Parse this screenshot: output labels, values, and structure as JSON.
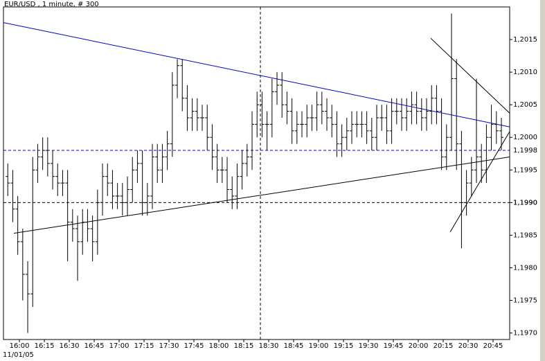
{
  "chart_data": {
    "type": "ohlc",
    "title": "EUR/USD , 1 minute, # 300",
    "date_label": "11/01/05",
    "x": [
      953,
      956,
      959,
      962,
      965,
      968,
      971,
      974,
      977,
      980,
      983,
      986,
      989,
      992,
      995,
      998,
      1001,
      1004,
      1007,
      1010,
      1013,
      1016,
      1019,
      1022,
      1025,
      1028,
      1031,
      1034,
      1037,
      1040,
      1043,
      1046,
      1049,
      1052,
      1055,
      1058,
      1061,
      1064,
      1067,
      1070,
      1073,
      1076,
      1079,
      1082,
      1085,
      1088,
      1091,
      1094,
      1097,
      1100,
      1103,
      1106,
      1109,
      1112,
      1115,
      1118,
      1121,
      1124,
      1127,
      1130,
      1133,
      1136,
      1139,
      1142,
      1145,
      1148,
      1151,
      1154,
      1157,
      1160,
      1163,
      1166,
      1169,
      1172,
      1175,
      1178,
      1181,
      1184,
      1187,
      1190,
      1193,
      1196,
      1199,
      1202,
      1205,
      1208,
      1211,
      1214,
      1217,
      1220,
      1223,
      1226,
      1229,
      1232,
      1235,
      1238,
      1241,
      1244,
      1247,
      1250
    ],
    "open": [
      1.1994,
      1.1993,
      1.1989,
      1.1984,
      1.1979,
      1.1976,
      1.1995,
      1.1997,
      1.1998,
      1.1996,
      1.1994,
      1.1993,
      1.1993,
      1.1987,
      1.1986,
      1.1984,
      1.1987,
      1.1986,
      1.1984,
      1.199,
      1.1994,
      1.1993,
      1.1991,
      1.1991,
      1.199,
      1.1992,
      1.1995,
      1.1996,
      1.199,
      1.1991,
      1.1997,
      1.1995,
      1.1997,
      1.1999,
      1.2008,
      1.2011,
      1.2006,
      1.2003,
      1.2004,
      1.2003,
      1.2003,
      1.2,
      1.1997,
      1.1995,
      1.1995,
      1.1992,
      1.1991,
      1.1994,
      1.1996,
      1.1997,
      1.2002,
      1.2005,
      1.2002,
      1.2002,
      1.2007,
      1.2008,
      1.2005,
      1.2004,
      1.2001,
      1.2002,
      1.2002,
      1.2003,
      1.2003,
      1.2005,
      1.2004,
      1.2003,
      1.2002,
      1.1999,
      1.2,
      1.2001,
      1.2002,
      1.2002,
      1.2002,
      1.2001,
      1.2,
      1.2003,
      1.2003,
      1.2001,
      1.2004,
      1.2004,
      1.2003,
      1.2004,
      1.2005,
      1.2004,
      1.2003,
      1.2004,
      1.2006,
      1.2004,
      1.1997,
      1.2,
      1.2009,
      1.1999,
      1.199,
      1.1993,
      1.1995,
      1.1997,
      1.1995,
      1.2,
      1.2002,
      1.2001
    ],
    "high": [
      1.1996,
      1.1995,
      1.1991,
      1.1986,
      1.1981,
      1.1997,
      1.1999,
      1.2,
      1.2,
      1.1998,
      1.1996,
      1.1995,
      1.1995,
      1.1989,
      1.1988,
      1.1989,
      1.1989,
      1.1988,
      1.1992,
      1.1996,
      1.1996,
      1.1995,
      1.1993,
      1.1993,
      1.1994,
      1.1997,
      1.1998,
      1.1998,
      1.1993,
      1.1999,
      1.1999,
      1.1999,
      1.2001,
      1.201,
      1.2012,
      1.2012,
      1.2008,
      1.2006,
      1.2006,
      1.2005,
      1.2005,
      1.2002,
      1.1999,
      1.1997,
      1.1997,
      1.1994,
      1.1996,
      1.1998,
      1.1999,
      1.2004,
      1.2007,
      1.2007,
      1.2004,
      1.2009,
      1.201,
      1.201,
      1.2007,
      1.2006,
      1.2004,
      1.2004,
      1.2005,
      1.2005,
      1.2007,
      1.2007,
      1.2006,
      1.2005,
      1.2004,
      1.2002,
      1.2003,
      1.2004,
      1.2004,
      1.2004,
      1.2004,
      1.2003,
      1.2005,
      1.2005,
      1.2005,
      1.2006,
      1.2006,
      1.2006,
      1.2006,
      1.2007,
      1.2007,
      1.2006,
      1.2006,
      1.2008,
      1.2008,
      1.2006,
      1.2002,
      1.2019,
      1.2012,
      1.2001,
      1.1995,
      1.1997,
      1.2009,
      1.1999,
      1.2002,
      1.2005,
      1.2004,
      1.2003
    ],
    "low": [
      1.1991,
      1.1987,
      1.1982,
      1.1975,
      1.197,
      1.1974,
      1.1993,
      1.1995,
      1.1994,
      1.1992,
      1.1991,
      1.1991,
      1.1981,
      1.1984,
      1.1978,
      1.1982,
      1.1984,
      1.1981,
      1.1982,
      1.1988,
      1.1991,
      1.1989,
      1.1989,
      1.1988,
      1.1988,
      1.199,
      1.1993,
      1.1988,
      1.1988,
      1.1989,
      1.1993,
      1.1993,
      1.1995,
      1.1997,
      1.2006,
      1.2004,
      1.2001,
      1.2001,
      1.2001,
      1.2001,
      1.1998,
      1.1995,
      1.1993,
      1.1993,
      1.199,
      1.1989,
      1.1989,
      1.1992,
      1.1994,
      1.1995,
      1.2,
      1.2,
      1.1998,
      1.2,
      1.2005,
      1.2003,
      1.2002,
      1.1999,
      1.1999,
      1.2,
      1.2,
      1.2001,
      1.2001,
      1.2002,
      1.2001,
      1.2,
      1.1997,
      1.1997,
      1.1998,
      1.1999,
      1.2,
      1.2,
      1.1999,
      1.1998,
      1.1998,
      1.2001,
      1.1999,
      1.1999,
      1.2002,
      1.2001,
      1.2001,
      1.2002,
      1.2002,
      1.2001,
      1.2001,
      1.2002,
      1.2002,
      1.1995,
      1.1995,
      1.1998,
      1.1995,
      1.1983,
      1.1988,
      1.1991,
      1.1993,
      1.1993,
      1.1993,
      1.1998,
      1.1999,
      1.1998
    ],
    "close": [
      1.1993,
      1.1989,
      1.1984,
      1.1979,
      1.1976,
      1.1995,
      1.1997,
      1.1998,
      1.1996,
      1.1994,
      1.1993,
      1.1993,
      1.1987,
      1.1986,
      1.1984,
      1.1987,
      1.1986,
      1.1984,
      1.199,
      1.1994,
      1.1993,
      1.1991,
      1.1991,
      1.199,
      1.1992,
      1.1995,
      1.1996,
      1.199,
      1.1991,
      1.1997,
      1.1995,
      1.1997,
      1.1999,
      1.2008,
      1.2011,
      1.2006,
      1.2003,
      1.2004,
      1.2003,
      1.2003,
      1.2,
      1.1997,
      1.1995,
      1.1995,
      1.1992,
      1.1991,
      1.1994,
      1.1996,
      1.1997,
      1.2002,
      1.2005,
      1.2002,
      1.2002,
      1.2007,
      1.2008,
      1.2005,
      1.2004,
      1.2001,
      1.2002,
      1.2002,
      1.2003,
      1.2003,
      1.2005,
      1.2004,
      1.2003,
      1.2002,
      1.1999,
      1.2,
      1.2001,
      1.2002,
      1.2002,
      1.2002,
      1.2001,
      1.2,
      1.2003,
      1.2003,
      1.2001,
      1.2004,
      1.2004,
      1.2003,
      1.2004,
      1.2005,
      1.2004,
      1.2003,
      1.2004,
      1.2006,
      1.2004,
      1.1997,
      1.2,
      1.2009,
      1.1999,
      1.199,
      1.1993,
      1.1995,
      1.1997,
      1.1995,
      1.2,
      1.2002,
      1.2001,
      1.2
    ],
    "color": "#000000",
    "xlim": [
      950.4,
      1255
    ],
    "ylim": [
      1.1969,
      1.202
    ],
    "xticks": [
      {
        "value": 960,
        "label": "16:00"
      },
      {
        "value": 975,
        "label": "16:15"
      },
      {
        "value": 990,
        "label": "16:30"
      },
      {
        "value": 1005,
        "label": "16:45"
      },
      {
        "value": 1020,
        "label": "17:00"
      },
      {
        "value": 1035,
        "label": "17:15"
      },
      {
        "value": 1050,
        "label": "17:30"
      },
      {
        "value": 1065,
        "label": "17:45"
      },
      {
        "value": 1080,
        "label": "18:00"
      },
      {
        "value": 1095,
        "label": "18:15"
      },
      {
        "value": 1110,
        "label": "18:30"
      },
      {
        "value": 1125,
        "label": "18:45"
      },
      {
        "value": 1140,
        "label": "19:00"
      },
      {
        "value": 1155,
        "label": "19:15"
      },
      {
        "value": 1170,
        "label": "19:30"
      },
      {
        "value": 1185,
        "label": "19:45"
      },
      {
        "value": 1200,
        "label": "20:00"
      },
      {
        "value": 1215,
        "label": "20:15"
      },
      {
        "value": 1230,
        "label": "20:30"
      },
      {
        "value": 1245,
        "label": "20:45"
      }
    ],
    "yticks": [
      {
        "value": 1.197,
        "label": "1,1970"
      },
      {
        "value": 1.1975,
        "label": "1,1975"
      },
      {
        "value": 1.198,
        "label": "1,1980"
      },
      {
        "value": 1.1985,
        "label": "1,1985"
      },
      {
        "value": 1.199,
        "label": "1,1990"
      },
      {
        "value": 1.1995,
        "label": "1,1995"
      },
      {
        "value": 1.2,
        "label": "1,2000"
      },
      {
        "value": 1.2005,
        "label": "1,2005"
      },
      {
        "value": 1.201,
        "label": "1,2010"
      },
      {
        "value": 1.2015,
        "label": "1,2015"
      }
    ],
    "hlines": [
      {
        "value": 1.1998,
        "label": "1,1998",
        "color": "#0000cc"
      },
      {
        "value": 1.199,
        "label": "1,1990",
        "color": "#000000"
      }
    ],
    "vlines": [
      1105
    ],
    "trendlines": [
      {
        "x1": 950.4,
        "y1": 1.20176,
        "x2": 1255,
        "y2": 1.20016,
        "color": "#0000cc"
      },
      {
        "x1": 956.7,
        "y1": 1.19853,
        "x2": 1255,
        "y2": 1.1997,
        "color": "#000000"
      },
      {
        "x1": 1207.5,
        "y1": 1.20152,
        "x2": 1255,
        "y2": 1.20037,
        "color": "#000000"
      },
      {
        "x1": 1219.2,
        "y1": 1.19855,
        "x2": 1255,
        "y2": 1.20009,
        "color": "#000000"
      }
    ]
  }
}
